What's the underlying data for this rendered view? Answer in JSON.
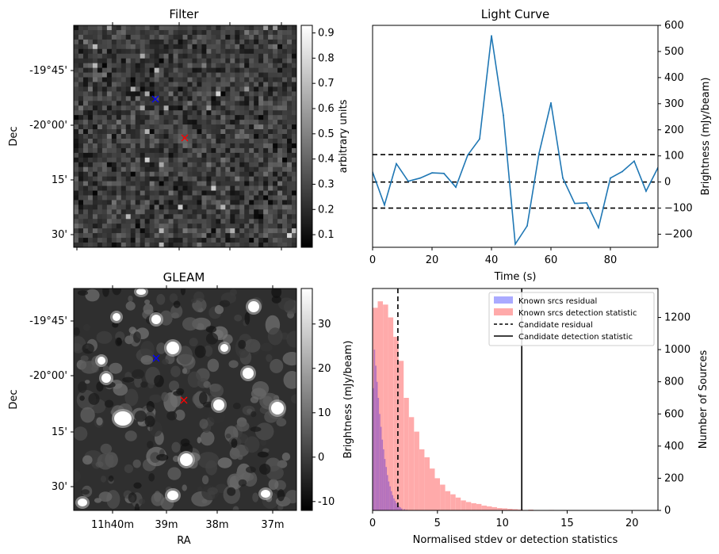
{
  "chart_data": [
    {
      "type": "heatmap",
      "title": "Filter",
      "xlabel": "",
      "ylabel": "Dec",
      "y_ticklabels": [
        "-19°45'",
        "-20°00'",
        "15'",
        "30'"
      ],
      "colorbar": {
        "label": "arbitrary units",
        "ticks": [
          0.1,
          0.2,
          0.3,
          0.4,
          0.5,
          0.6,
          0.7,
          0.8,
          0.9
        ],
        "range": [
          0.05,
          0.93
        ],
        "colormap": "gray"
      },
      "markers": [
        {
          "symbol": "x",
          "color": "#0000ff"
        },
        {
          "symbol": "x",
          "color": "#ff0000"
        }
      ]
    },
    {
      "type": "line",
      "title": "Light Curve",
      "xlabel": "Time (s)",
      "ylabel": "Brightness (mJy/beam)",
      "xlim": [
        0,
        96
      ],
      "ylim": [
        -250,
        600
      ],
      "x_ticks": [
        0,
        20,
        40,
        60,
        80
      ],
      "y_ticks": [
        -200,
        -100,
        0,
        100,
        200,
        300,
        400,
        500,
        600
      ],
      "y_axis_side": "right",
      "series": [
        {
          "color": "#1f77b4",
          "x": [
            0,
            4,
            8,
            12,
            16,
            20,
            24,
            28,
            32,
            36,
            40,
            44,
            48,
            52,
            56,
            60,
            64,
            68,
            72,
            76,
            80,
            84,
            88,
            92,
            96
          ],
          "values": [
            38,
            -88,
            70,
            3,
            15,
            35,
            33,
            -20,
            103,
            165,
            560,
            255,
            -238,
            -168,
            110,
            303,
            15,
            -82,
            -80,
            -175,
            15,
            40,
            80,
            -35,
            55
          ]
        }
      ],
      "hlines": [
        {
          "y": 105,
          "style": "dashed"
        },
        {
          "y": 0,
          "style": "dashed"
        },
        {
          "y": -100,
          "style": "dashed"
        }
      ]
    },
    {
      "type": "heatmap",
      "title": "GLEAM",
      "xlabel": "RA",
      "ylabel": "Dec",
      "x_ticklabels": [
        "11h40m",
        "39m",
        "38m",
        "37m"
      ],
      "y_ticklabels": [
        "-19°45'",
        "-20°00'",
        "15'",
        "30'"
      ],
      "colorbar": {
        "label": "Brightness (mJy/beam)",
        "ticks": [
          -10,
          0,
          10,
          20,
          30
        ],
        "range": [
          -12,
          38
        ],
        "colormap": "gray"
      },
      "markers": [
        {
          "symbol": "x",
          "color": "#0000ff"
        },
        {
          "symbol": "x",
          "color": "#ff0000"
        }
      ]
    },
    {
      "type": "bar",
      "title": "",
      "xlabel": "Normalised stdev or detection statistics",
      "ylabel": "Number of Sources",
      "xlim": [
        0,
        22
      ],
      "ylim": [
        0,
        1380
      ],
      "x_ticks": [
        0,
        5,
        10,
        15,
        20
      ],
      "y_ticks": [
        0,
        200,
        400,
        600,
        800,
        1000,
        1200
      ],
      "y_axis_side": "right",
      "legend": {
        "placement": "top-right",
        "entries": [
          {
            "label": "Known srcs residual",
            "kind": "patch",
            "color": "#aaaaff"
          },
          {
            "label": "Known srcs detection statistic",
            "kind": "patch",
            "color": "#ffaaaa"
          },
          {
            "label": "Candidate residual",
            "kind": "dashed-line",
            "color": "#000000"
          },
          {
            "label": "Candidate detection statistic",
            "kind": "solid-line",
            "color": "#000000"
          }
        ]
      },
      "series": [
        {
          "name": "Known srcs detection statistic",
          "color": "#ffaaaa",
          "bin_width": 0.4,
          "bins_start": [
            0.0,
            0.4,
            0.8,
            1.2,
            1.6,
            2.0,
            2.4,
            2.8,
            3.2,
            3.6,
            4.0,
            4.4,
            4.8,
            5.2,
            5.6,
            6.0,
            6.4,
            6.8,
            7.2,
            7.6,
            8.0,
            8.4,
            8.8,
            9.2,
            9.6,
            10.0,
            10.4,
            10.8,
            11.2,
            12.0,
            13.6,
            14.0,
            20.4
          ],
          "values": [
            1260,
            1300,
            1280,
            1200,
            1080,
            930,
            700,
            580,
            490,
            380,
            330,
            260,
            200,
            160,
            120,
            100,
            80,
            62,
            52,
            45,
            40,
            30,
            25,
            20,
            15,
            13,
            10,
            8,
            6,
            5,
            3,
            2,
            2
          ]
        },
        {
          "name": "Known srcs residual",
          "color": "#aaaaff",
          "bin_width": 0.1,
          "bins_start": [
            0.0,
            0.1,
            0.2,
            0.3,
            0.4,
            0.5,
            0.6,
            0.7,
            0.8,
            0.9,
            1.0,
            1.1,
            1.2,
            1.3,
            1.4,
            1.5,
            1.6,
            1.7,
            1.8,
            1.9,
            2.0,
            2.1,
            2.2,
            2.4,
            2.6
          ],
          "values": [
            760,
            1000,
            900,
            800,
            700,
            600,
            520,
            440,
            380,
            320,
            270,
            220,
            180,
            150,
            120,
            95,
            75,
            60,
            45,
            35,
            25,
            18,
            12,
            8,
            4
          ]
        }
      ],
      "vlines": [
        {
          "x": 1.95,
          "style": "dashed",
          "label": "Candidate residual"
        },
        {
          "x": 11.5,
          "style": "solid",
          "label": "Candidate detection statistic"
        }
      ]
    }
  ]
}
